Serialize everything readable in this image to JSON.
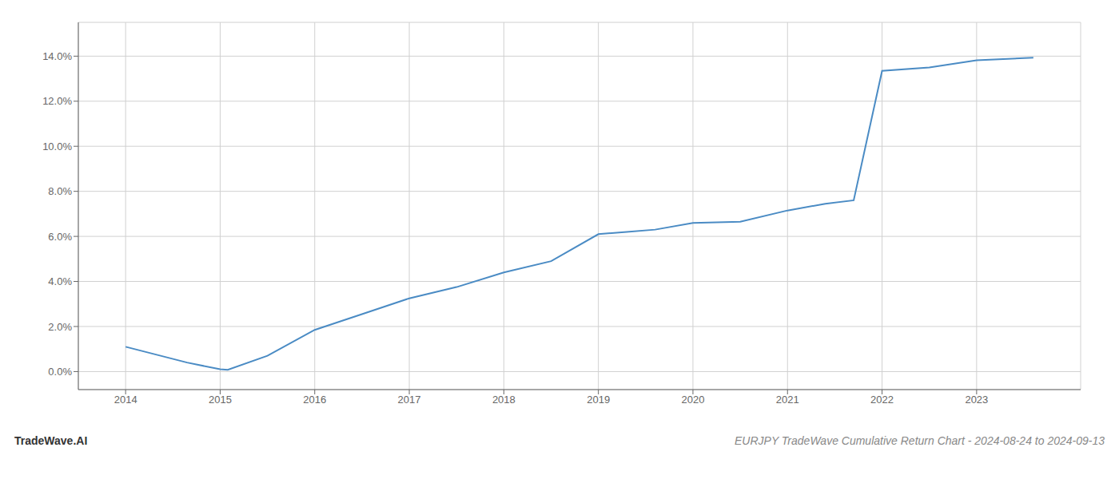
{
  "chart_data": {
    "type": "line",
    "x": [
      2014,
      2014.65,
      2015,
      2015.08,
      2015.5,
      2016,
      2016.5,
      2017,
      2017.5,
      2018,
      2018.5,
      2019,
      2019.3,
      2019.6,
      2020,
      2020.5,
      2021,
      2021.4,
      2021.7,
      2022,
      2022.5,
      2023,
      2023.6
    ],
    "values": [
      1.1,
      0.4,
      0.1,
      0.08,
      0.7,
      1.85,
      2.55,
      3.25,
      3.75,
      4.4,
      4.9,
      6.1,
      6.2,
      6.3,
      6.6,
      6.65,
      7.15,
      7.45,
      7.6,
      13.35,
      13.5,
      13.82,
      13.93
    ],
    "color": "#4a8bc4",
    "xlim": [
      2013.5,
      2024.1
    ],
    "xticks": [
      2014,
      2015,
      2016,
      2017,
      2018,
      2019,
      2020,
      2021,
      2022,
      2023
    ],
    "ylim": [
      -0.8,
      15.5
    ],
    "yticks": [
      {
        "value": 0.0,
        "label": "0.0%"
      },
      {
        "value": 2.0,
        "label": "2.0%"
      },
      {
        "value": 4.0,
        "label": "4.0%"
      },
      {
        "value": 6.0,
        "label": "6.0%"
      },
      {
        "value": 8.0,
        "label": "8.0%"
      },
      {
        "value": 10.0,
        "label": "10.0%"
      },
      {
        "value": 12.0,
        "label": "12.0%"
      },
      {
        "value": 14.0,
        "label": "14.0%"
      }
    ],
    "grid": true,
    "annotations": [
      "TradeWave.AI",
      "EURJPY TradeWave Cumulative Return Chart - 2024-08-24 to 2024-09-13"
    ]
  }
}
